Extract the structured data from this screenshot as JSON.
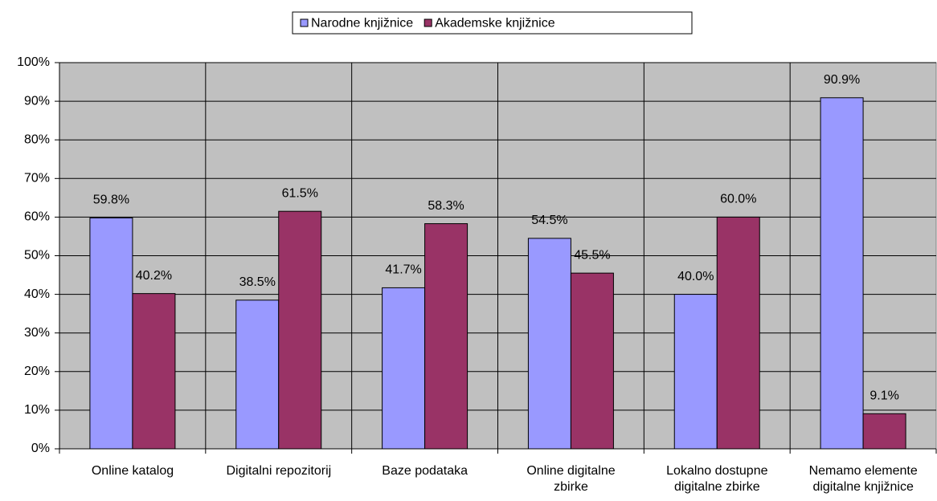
{
  "chart_data": {
    "type": "bar",
    "categories": [
      "Online katalog",
      "Digitalni repozitorij",
      "Baze podataka",
      "Online digitalne\nzbirke",
      "Lokalno dostupne\ndigitalne zbirke",
      "Nemamo elemente\ndigitalne knjižnice"
    ],
    "series": [
      {
        "name": "Narodne knjižnice",
        "color": "#9999ff",
        "values": [
          59.8,
          38.5,
          41.7,
          54.5,
          40.0,
          90.9
        ],
        "value_labels": [
          "59.8%",
          "38.5%",
          "41.7%",
          "54.5%",
          "40.0%",
          "90.9%"
        ]
      },
      {
        "name": "Akademske knjižnice",
        "color": "#993366",
        "values": [
          40.2,
          61.5,
          58.3,
          45.5,
          60.0,
          9.1
        ],
        "value_labels": [
          "40.2%",
          "61.5%",
          "58.3%",
          "45.5%",
          "60.0%",
          "9.1%"
        ]
      }
    ],
    "ylim": [
      0,
      100
    ],
    "yticks": [
      {
        "value": 0,
        "label": "0%"
      },
      {
        "value": 10,
        "label": "10%"
      },
      {
        "value": 20,
        "label": "20%"
      },
      {
        "value": 30,
        "label": "30%"
      },
      {
        "value": 40,
        "label": "40%"
      },
      {
        "value": 50,
        "label": "50%"
      },
      {
        "value": 60,
        "label": "60%"
      },
      {
        "value": 70,
        "label": "70%"
      },
      {
        "value": 80,
        "label": "80%"
      },
      {
        "value": 90,
        "label": "90%"
      },
      {
        "value": 100,
        "label": "100%"
      }
    ],
    "grid": true,
    "plot_background": "#c0c0c0",
    "legend": "top"
  }
}
